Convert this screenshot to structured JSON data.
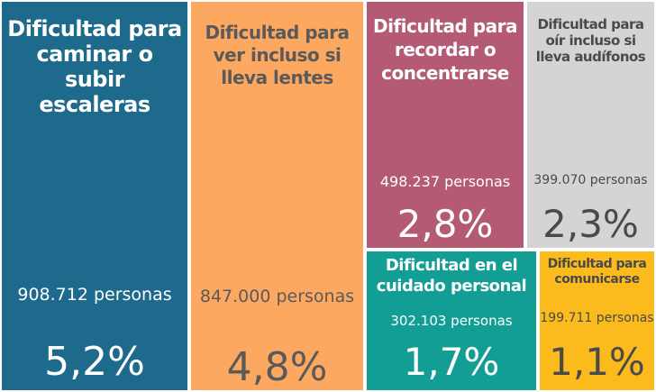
{
  "chart_data": {
    "type": "treemap",
    "unit": "personas",
    "items": [
      {
        "label": "Dificultad para caminar o subir escaleras",
        "count": "908.712 personas",
        "percent": 5.2,
        "percent_label": "5,2%",
        "color": "#1d6a8c",
        "text_color": "#ffffff"
      },
      {
        "label": "Dificultad para ver incluso si lleva lentes",
        "count": "847.000 personas",
        "percent": 4.8,
        "percent_label": "4,8%",
        "color": "#fda860",
        "text_color": "#5a5a5a"
      },
      {
        "label": "Dificultad para recordar o concentrarse",
        "count": "498.237 personas",
        "percent": 2.8,
        "percent_label": "2,8%",
        "color": "#b45a75",
        "text_color": "#ffffff"
      },
      {
        "label": "Dificultad para oír incluso si lleva audífonos",
        "count": "399.070 personas",
        "percent": 2.3,
        "percent_label": "2,3%",
        "color": "#d4d4d4",
        "text_color": "#4a4a4a"
      },
      {
        "label": "Dificultad en el cuidado personal",
        "count": "302.103 personas",
        "percent": 1.7,
        "percent_label": "1,7%",
        "color": "#139e95",
        "text_color": "#ffffff"
      },
      {
        "label": "Dificultad para comunicarse",
        "count": "199.711 personas",
        "percent": 1.1,
        "percent_label": "1,1%",
        "color": "#fbbb1d",
        "text_color": "#4a4a4a"
      }
    ]
  }
}
